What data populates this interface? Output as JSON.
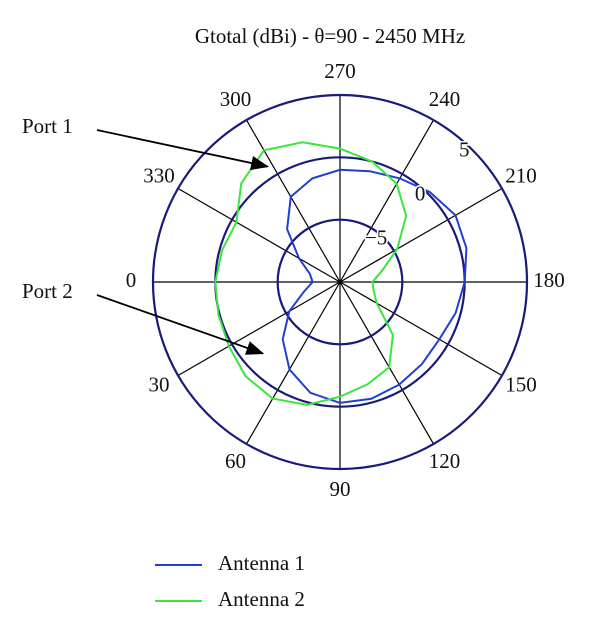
{
  "chart_data": {
    "type": "polar",
    "title": "Gtotal (dBi) - θ=90 - 2450 MHz",
    "theta": [
      0,
      15,
      30,
      45,
      60,
      75,
      90,
      105,
      120,
      135,
      150,
      165,
      180,
      195,
      210,
      225,
      240,
      255,
      270,
      285,
      300,
      315,
      330,
      345
    ],
    "series": [
      {
        "name": "Antenna 1",
        "color": "#1f3fd0",
        "values": [
          -7.8,
          -7.0,
          -5.3,
          -3.5,
          -1.9,
          -0.8,
          -0.3,
          -0.3,
          -0.5,
          -0.7,
          -0.8,
          -0.4,
          0.0,
          0.5,
          0.7,
          0.2,
          -0.4,
          -0.8,
          -1.0,
          -1.4,
          -2.1,
          -4.0,
          -6.2,
          -7.5
        ]
      },
      {
        "name": "Antenna 2",
        "color": "#3be63b",
        "values": [
          0.0,
          0.1,
          0.3,
          0.7,
          0.8,
          0.2,
          -0.8,
          -1.5,
          -2.1,
          -4.0,
          -6.6,
          -7.2,
          -7.4,
          -6.5,
          -4.7,
          -2.5,
          -0.9,
          0.0,
          0.7,
          1.6,
          2.2,
          1.2,
          -0.4,
          -0.2
        ]
      }
    ],
    "rlim": [
      -10,
      5
    ],
    "rticks": [
      {
        "value": -5,
        "label": "−5"
      },
      0,
      5
    ],
    "thetaticks": [
      0,
      30,
      60,
      90,
      120,
      150,
      180,
      210,
      240,
      270,
      300,
      330
    ],
    "annotations": [
      {
        "text": "Port 1",
        "theta": 300,
        "r": 0.7
      },
      {
        "text": "Port 2",
        "theta": 45,
        "r": -1.9
      }
    ],
    "grid": true
  }
}
